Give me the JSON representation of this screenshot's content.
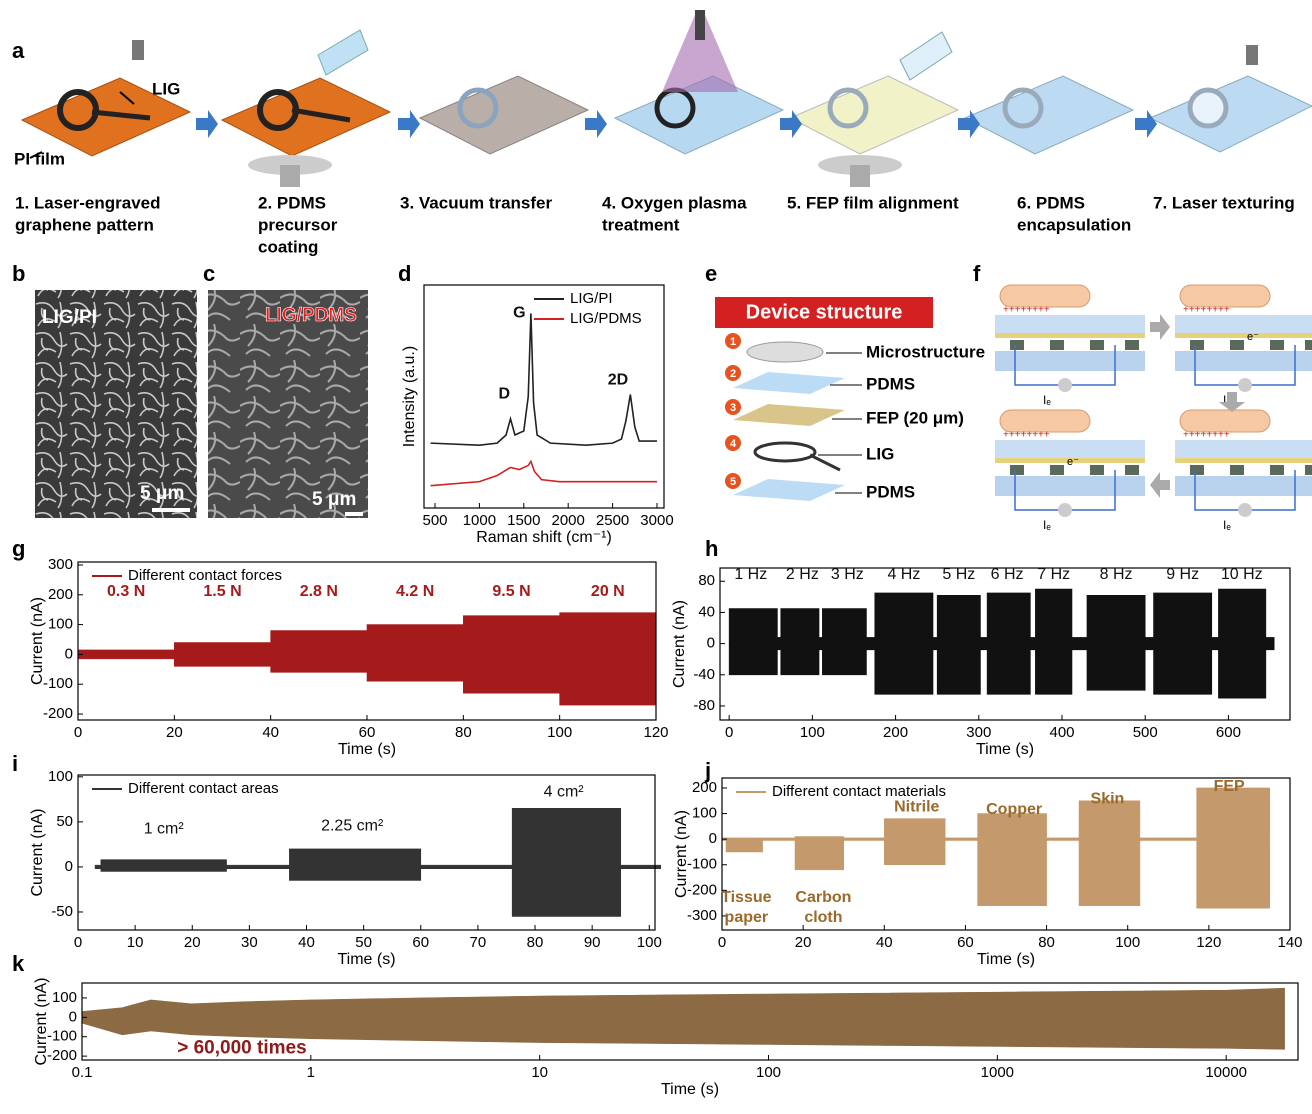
{
  "panel_labels": [
    "a",
    "b",
    "c",
    "d",
    "e",
    "f",
    "g",
    "h",
    "i",
    "j",
    "k"
  ],
  "a": {
    "steps": [
      [
        "1. Laser-engraved",
        "graphene pattern"
      ],
      [
        "2. PDMS",
        "precursor",
        "coating"
      ],
      [
        "3. Vacuum transfer"
      ],
      [
        "4. Oxygen plasma",
        "treatment"
      ],
      [
        "5. FEP film alignment"
      ],
      [
        "6. PDMS",
        "encapsulation"
      ],
      [
        "7. Laser texturing"
      ]
    ],
    "lig": "LIG",
    "pi_film": "PI film"
  },
  "b": {
    "label": "LIG/PI",
    "scale": "5 μm"
  },
  "c": {
    "label": "LIG/PDMS",
    "scale": "5 μm"
  },
  "e": {
    "title": "Device structure",
    "layers": [
      "Microstructure",
      "PDMS",
      "FEP (20 μm)",
      "LIG",
      "PDMS"
    ],
    "numbers": [
      1,
      2,
      3,
      4,
      5
    ]
  },
  "f": {
    "charge": "++++++++",
    "electron": "e⁻",
    "current": "Iₑ"
  },
  "chart_data": [
    {
      "type": "line",
      "xlabel": "Raman shift (cm⁻¹)",
      "ylabel": "Intensity (a.u.)",
      "xlim": [
        376,
        3079
      ],
      "xticks": [
        500,
        1000,
        1500,
        2000,
        2500,
        3000
      ],
      "ylim": [
        0,
        11
      ],
      "legend": "upper right",
      "series": [
        {
          "name": "LIG/PI",
          "color": "#222222",
          "x": [
            450,
            1000,
            1200,
            1300,
            1350,
            1400,
            1500,
            1550,
            1580,
            1610,
            1650,
            1800,
            2200,
            2500,
            2600,
            2650,
            2700,
            2750,
            2800,
            3000
          ],
          "values": [
            3.2,
            3.1,
            3.2,
            3.6,
            4.4,
            3.6,
            3.8,
            5.5,
            9.6,
            5.2,
            3.6,
            3.2,
            3.1,
            3.2,
            3.4,
            4.3,
            5.6,
            4.0,
            3.3,
            3.3
          ]
        },
        {
          "name": "LIG/PDMS",
          "color": "#d42020",
          "x": [
            450,
            1000,
            1200,
            1350,
            1450,
            1550,
            1580,
            1620,
            1700,
            1900,
            2500,
            3000
          ],
          "values": [
            1.1,
            1.3,
            1.6,
            2.0,
            1.9,
            2.1,
            2.3,
            1.8,
            1.4,
            1.3,
            1.3,
            1.3
          ]
        }
      ],
      "annotations": [
        {
          "text": "D",
          "x": 1280,
          "y": 5.6
        },
        {
          "text": "G",
          "x": 1450,
          "y": 9.6
        },
        {
          "text": "2D",
          "x": 2560,
          "y": 6.3
        }
      ]
    },
    {
      "type": "range",
      "xlabel": "Time (s)",
      "ylabel": "Current (nA)",
      "xlim": [
        0,
        120
      ],
      "xticks": [
        0,
        20,
        40,
        60,
        80,
        100,
        120
      ],
      "ylim": [
        -220,
        310
      ],
      "yticks": [
        -200,
        -100,
        0,
        100,
        200,
        300
      ],
      "legend": "upper left",
      "annotation_color": "#a51b1b",
      "series": [
        {
          "name": "Different contact forces",
          "color": "#a51b1b",
          "x": [
            0,
            20,
            20,
            40,
            40,
            60,
            60,
            80,
            80,
            100,
            100,
            120
          ],
          "values": [
            15,
            15,
            40,
            40,
            80,
            80,
            100,
            100,
            130,
            130,
            140,
            140
          ],
          "low": [
            -15,
            -15,
            -40,
            -40,
            -60,
            -60,
            -90,
            -90,
            -130,
            -130,
            -170,
            -170
          ]
        }
      ],
      "annotations": [
        {
          "text": "0.3 N",
          "x": 10,
          "y": 210
        },
        {
          "text": "1.5 N",
          "x": 30,
          "y": 210
        },
        {
          "text": "2.8 N",
          "x": 50,
          "y": 210
        },
        {
          "text": "4.2 N",
          "x": 70,
          "y": 210
        },
        {
          "text": "9.5 N",
          "x": 90,
          "y": 210
        },
        {
          "text": "20 N",
          "x": 110,
          "y": 210
        }
      ]
    },
    {
      "type": "range",
      "xlabel": "Time (s)",
      "ylabel": "Current (nA)",
      "xlim": [
        -11,
        674
      ],
      "xticks": [
        0,
        100,
        200,
        300,
        400,
        500,
        600
      ],
      "ylim": [
        -98,
        97
      ],
      "yticks": [
        -80,
        -40,
        0,
        40,
        80
      ],
      "series": [
        {
          "color": "#111111",
          "x": [
            0,
            58,
            58,
            62,
            62,
            108,
            108,
            112,
            112,
            165,
            165,
            175,
            175,
            245,
            245,
            250,
            250,
            302,
            302,
            310,
            310,
            362,
            362,
            368,
            368,
            412,
            412,
            430,
            430,
            500,
            500,
            510,
            510,
            580,
            580,
            588,
            588,
            645,
            645,
            655
          ],
          "values": [
            45,
            45,
            8,
            8,
            45,
            45,
            8,
            8,
            45,
            45,
            8,
            8,
            65,
            65,
            8,
            8,
            62,
            62,
            8,
            8,
            65,
            65,
            8,
            8,
            70,
            70,
            8,
            8,
            62,
            62,
            8,
            8,
            65,
            65,
            8,
            8,
            70,
            70,
            8,
            8
          ],
          "low": [
            -40,
            -40,
            -8,
            -8,
            -40,
            -40,
            -8,
            -8,
            -40,
            -40,
            -8,
            -8,
            -65,
            -65,
            -8,
            -8,
            -65,
            -65,
            -8,
            -8,
            -65,
            -65,
            -8,
            -8,
            -65,
            -65,
            -8,
            -8,
            -60,
            -60,
            -8,
            -8,
            -65,
            -65,
            -8,
            -8,
            -70,
            -70,
            -8,
            -8
          ]
        }
      ],
      "annotations": [
        {
          "text": "1 Hz",
          "x": 26,
          "y": 88
        },
        {
          "text": "2 Hz",
          "x": 88,
          "y": 88
        },
        {
          "text": "3 Hz",
          "x": 142,
          "y": 88
        },
        {
          "text": "4 Hz",
          "x": 210,
          "y": 88
        },
        {
          "text": "5 Hz",
          "x": 276,
          "y": 88
        },
        {
          "text": "6 Hz",
          "x": 334,
          "y": 88
        },
        {
          "text": "7 Hz",
          "x": 390,
          "y": 88
        },
        {
          "text": "8 Hz",
          "x": 465,
          "y": 88
        },
        {
          "text": "9 Hz",
          "x": 545,
          "y": 88
        },
        {
          "text": "10 Hz",
          "x": 616,
          "y": 88
        }
      ]
    },
    {
      "type": "range",
      "xlabel": "Time (s)",
      "ylabel": "Current (nA)",
      "xlim": [
        0,
        101
      ],
      "xticks": [
        0,
        10,
        20,
        30,
        40,
        50,
        60,
        70,
        80,
        90,
        100
      ],
      "ylim": [
        -70,
        102
      ],
      "yticks": [
        -50,
        0,
        50,
        100
      ],
      "legend": "upper left",
      "series": [
        {
          "name": "Different contact areas",
          "color": "#333333",
          "x": [
            3,
            4,
            4,
            26,
            26,
            37,
            37,
            60,
            60,
            76,
            76,
            95,
            95,
            102
          ],
          "values": [
            2,
            2,
            8,
            8,
            2,
            2,
            20,
            20,
            2,
            2,
            65,
            65,
            2,
            2
          ],
          "low": [
            -2,
            -2,
            -5,
            -5,
            -2,
            -2,
            -15,
            -15,
            -2,
            -2,
            -55,
            -55,
            -2,
            -2
          ]
        }
      ],
      "annotations": [
        {
          "text": "1 cm²",
          "x": 15,
          "y": 42
        },
        {
          "text": "2.25 cm²",
          "x": 48,
          "y": 45
        },
        {
          "text": "4 cm²",
          "x": 85,
          "y": 83
        }
      ]
    },
    {
      "type": "range",
      "xlabel": "Time (s)",
      "ylabel": "Current (nA)",
      "xlim": [
        0,
        140
      ],
      "xticks": [
        0,
        20,
        40,
        60,
        80,
        100,
        120,
        140
      ],
      "ylim": [
        -355,
        239
      ],
      "yticks": [
        -300,
        -200,
        -100,
        0,
        100,
        200
      ],
      "legend": "upper left",
      "annotation_color": "#9b6a2a",
      "series": [
        {
          "name": "Different contact materials",
          "color": "#c49a6c",
          "x": [
            0,
            1,
            1,
            10,
            10,
            18,
            18,
            30,
            30,
            40,
            40,
            55,
            55,
            63,
            63,
            80,
            80,
            88,
            88,
            103,
            103,
            117,
            117,
            135
          ],
          "values": [
            5,
            5,
            5,
            5,
            5,
            5,
            10,
            10,
            5,
            5,
            80,
            80,
            5,
            5,
            100,
            100,
            5,
            5,
            150,
            150,
            5,
            5,
            200,
            200
          ],
          "low": [
            -5,
            -5,
            -50,
            -50,
            -5,
            -5,
            -120,
            -120,
            -5,
            -5,
            -100,
            -100,
            -5,
            -5,
            -260,
            -260,
            -5,
            -5,
            -260,
            -260,
            -5,
            -5,
            -270,
            -270
          ]
        }
      ],
      "annotations": [
        {
          "text": "Tissue paper",
          "x": 6,
          "y": -230
        },
        {
          "text": "Carbon cloth",
          "x": 25,
          "y": -230
        },
        {
          "text": "Nitrile",
          "x": 48,
          "y": 125
        },
        {
          "text": "Copper",
          "x": 72,
          "y": 115
        },
        {
          "text": "Skin",
          "x": 95,
          "y": 155
        },
        {
          "text": "FEP",
          "x": 125,
          "y": 205
        }
      ]
    },
    {
      "type": "range",
      "xscale": "log",
      "xlabel": "Time (s)",
      "ylabel": "Current (nA)",
      "xlim": [
        0.1,
        20600
      ],
      "xticks": [
        0.1,
        1,
        10,
        100,
        1000,
        10000
      ],
      "ylim": [
        -220,
        177
      ],
      "yticks": [
        -200,
        -100,
        0,
        100
      ],
      "annotation_color": "#8e1a1a",
      "series": [
        {
          "color": "#8b6a44",
          "x": [
            0.1,
            0.15,
            0.2,
            0.3,
            0.5,
            1,
            3,
            10,
            100,
            1000,
            10000,
            18000
          ],
          "values": [
            30,
            50,
            90,
            70,
            80,
            90,
            100,
            110,
            120,
            130,
            140,
            150
          ],
          "low": [
            -30,
            -90,
            -70,
            -90,
            -100,
            -110,
            -120,
            -130,
            -140,
            -150,
            -160,
            -165
          ]
        }
      ],
      "annotations": [
        {
          "text": "> 60,000 times",
          "x": 0.5,
          "y": -160
        }
      ]
    }
  ]
}
